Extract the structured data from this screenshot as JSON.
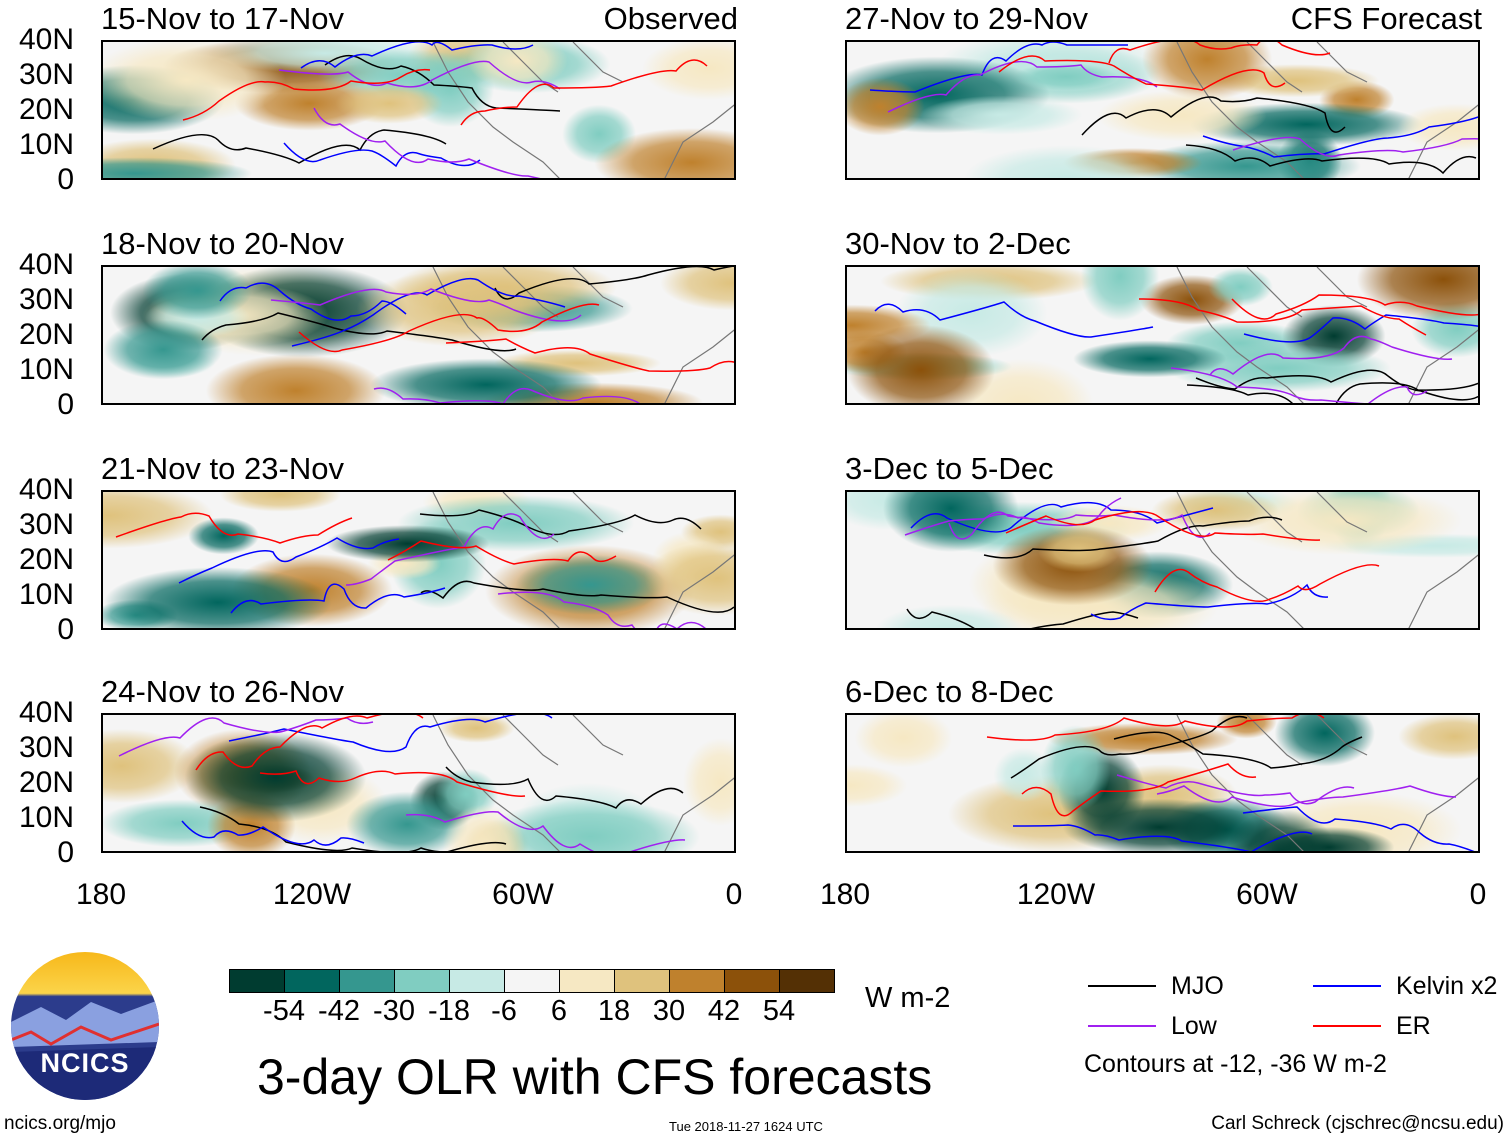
{
  "panels": [
    {
      "title": "15-Nov to 17-Nov",
      "label": "Observed",
      "col": 0,
      "row": 0
    },
    {
      "title": "27-Nov to 29-Nov",
      "label": "CFS Forecast",
      "col": 1,
      "row": 0
    },
    {
      "title": "18-Nov to 20-Nov",
      "label": "",
      "col": 0,
      "row": 1
    },
    {
      "title": "30-Nov to 2-Dec",
      "label": "",
      "col": 1,
      "row": 1
    },
    {
      "title": "21-Nov to 23-Nov",
      "label": "",
      "col": 0,
      "row": 2
    },
    {
      "title": "3-Dec to 5-Dec",
      "label": "",
      "col": 1,
      "row": 2
    },
    {
      "title": "24-Nov to 26-Nov",
      "label": "",
      "col": 0,
      "row": 3
    },
    {
      "title": "6-Dec to 8-Dec",
      "label": "",
      "col": 1,
      "row": 3
    }
  ],
  "y_ticks": [
    "40N",
    "30N",
    "20N",
    "10N",
    "0"
  ],
  "x_ticks": [
    "180",
    "120W",
    "60W",
    "0"
  ],
  "colorbar": {
    "colors": [
      "#003c30",
      "#01665e",
      "#35978f",
      "#80cdc1",
      "#c7eae5",
      "#f5f5f5",
      "#f6e8c3",
      "#dfc27d",
      "#bf812d",
      "#8c510a",
      "#543005"
    ],
    "labels": [
      "-54",
      "-42",
      "-30",
      "-18",
      "-6",
      "6",
      "18",
      "30",
      "42",
      "54"
    ],
    "units": "W m-2"
  },
  "legend": {
    "items": [
      {
        "label": "MJO",
        "color": "#000000"
      },
      {
        "label": "Kelvin x2",
        "color": "#0000ff"
      },
      {
        "label": "Low",
        "color": "#a020f0"
      },
      {
        "label": "ER",
        "color": "#ff0000"
      }
    ],
    "note": "Contours at -12, -36 W m-2"
  },
  "title": "3-day OLR with CFS forecasts",
  "logo_text": "NCICS",
  "footer": {
    "left": "ncics.org/mjo",
    "center": "Tue 2018-11-27 1624 UTC",
    "right": "Carl Schreck (cjschrec@ncsu.edu)"
  }
}
